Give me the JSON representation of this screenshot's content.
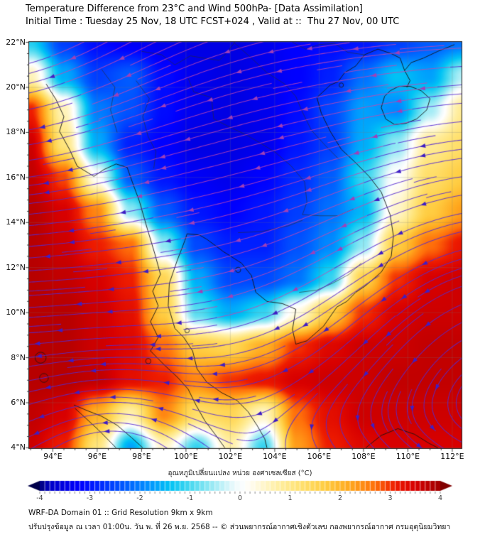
{
  "header": {
    "title": "Temperature Difference from 23°C and Wind 500hPa- [Data Assimilation]",
    "subtitle": "Initial Time : Tuesday 25 Nov, 18 UTC FCST+024 , Valid at ::  Thu 27 Nov, 00 UTC"
  },
  "axes": {
    "lat_ticks": [
      {
        "deg": 22,
        "label": "22°N"
      },
      {
        "deg": 20,
        "label": "20°N"
      },
      {
        "deg": 18,
        "label": "18°N"
      },
      {
        "deg": 16,
        "label": "16°N"
      },
      {
        "deg": 14,
        "label": "14°N"
      },
      {
        "deg": 12,
        "label": "12°N"
      },
      {
        "deg": 10,
        "label": "10°N"
      },
      {
        "deg": 8,
        "label": "8°N"
      },
      {
        "deg": 6,
        "label": "6°N"
      },
      {
        "deg": 4,
        "label": "4°N"
      }
    ],
    "lon_ticks": [
      {
        "deg": 94,
        "label": "94°E"
      },
      {
        "deg": 96,
        "label": "96°E"
      },
      {
        "deg": 98,
        "label": "98°E"
      },
      {
        "deg": 100,
        "label": "100°E"
      },
      {
        "deg": 102,
        "label": "102°E"
      },
      {
        "deg": 104,
        "label": "104°E"
      },
      {
        "deg": 106,
        "label": "106°E"
      },
      {
        "deg": 108,
        "label": "108°E"
      },
      {
        "deg": 110,
        "label": "110°E"
      },
      {
        "deg": 112,
        "label": "112°E"
      }
    ],
    "lon_min": 92.9,
    "lon_max": 112.45,
    "lat_min": 3.95,
    "lat_max": 22.05
  },
  "chart_data": {
    "type": "heatmap",
    "title": "Temperature difference (°C) from 23°C at 500hPa with streamlines",
    "x": [
      93,
      94.5,
      96,
      97.5,
      99,
      100.5,
      102,
      103.5,
      105,
      106.5,
      108,
      109.5,
      111,
      112.5
    ],
    "y": [
      22,
      20.5,
      19,
      17.5,
      16,
      14.5,
      13,
      11.5,
      10,
      8.5,
      7,
      5.5,
      4
    ],
    "values": [
      [
        -1.2,
        -2.6,
        -3.1,
        -3.3,
        -3.4,
        -3.5,
        -3.5,
        -3.4,
        -3.2,
        -3.1,
        -3.0,
        -2.6,
        -2.3,
        -2.1
      ],
      [
        0.6,
        -1.6,
        -2.6,
        -2.3,
        -3.1,
        -3.4,
        -3.5,
        -3.4,
        -3.2,
        -2.9,
        -2.1,
        -1.4,
        -1.7,
        -0.4
      ],
      [
        3.1,
        0.6,
        -2.0,
        -2.4,
        -3.1,
        -3.4,
        -3.5,
        -3.4,
        -3.1,
        -2.5,
        -1.7,
        -1.9,
        -0.5,
        0.9
      ],
      [
        3.6,
        1.1,
        -1.6,
        -2.9,
        -3.2,
        -3.5,
        -3.5,
        -3.4,
        -3.0,
        -2.6,
        -1.6,
        -0.6,
        0.9,
        1.3
      ],
      [
        3.7,
        2.9,
        0.1,
        -2.3,
        -3.0,
        -3.3,
        -3.4,
        -3.2,
        -2.8,
        -2.3,
        -1.1,
        0.1,
        1.3,
        1.7
      ],
      [
        3.8,
        3.5,
        2.5,
        -0.6,
        -2.3,
        -3.0,
        -3.2,
        -3.0,
        -2.6,
        -2.1,
        -1.5,
        0.5,
        1.7,
        2.3
      ],
      [
        3.8,
        3.6,
        3.1,
        2.7,
        -0.6,
        -2.5,
        -2.9,
        -2.9,
        -2.4,
        -1.9,
        -0.6,
        1.7,
        2.7,
        3.2
      ],
      [
        3.8,
        3.7,
        3.5,
        3.1,
        1.5,
        -1.6,
        -2.5,
        -2.5,
        -2.1,
        -1.1,
        1.6,
        3.0,
        3.5,
        3.6
      ],
      [
        3.8,
        3.8,
        3.6,
        3.3,
        1.7,
        -0.9,
        -1.6,
        -1.1,
        0.3,
        1.7,
        3.0,
        3.5,
        3.6,
        3.6
      ],
      [
        3.8,
        3.8,
        3.6,
        3.4,
        2.7,
        1.7,
        1.5,
        2.1,
        3.0,
        3.4,
        3.6,
        3.6,
        3.7,
        3.7
      ],
      [
        3.8,
        3.8,
        3.7,
        3.3,
        3.1,
        2.5,
        3.0,
        3.2,
        3.5,
        3.6,
        3.6,
        3.7,
        3.7,
        3.7
      ],
      [
        3.7,
        3.5,
        2.1,
        0.7,
        2.5,
        1.3,
        1.5,
        0.5,
        2.7,
        3.3,
        3.6,
        3.6,
        3.6,
        3.6
      ],
      [
        3.6,
        3.1,
        1.1,
        -1.7,
        0.5,
        -1.1,
        0.7,
        -1.1,
        2.3,
        3.1,
        3.4,
        3.5,
        3.5,
        3.5
      ]
    ],
    "colormap": [
      [
        -4.3,
        "#000041"
      ],
      [
        -4.0,
        "#000078"
      ],
      [
        -3.8,
        "#0000c8"
      ],
      [
        -3.2,
        "#0000ff"
      ],
      [
        -2.7,
        "#0033ff"
      ],
      [
        -2.2,
        "#0066ff"
      ],
      [
        -1.8,
        "#0096ff"
      ],
      [
        -1.4,
        "#00c3f5"
      ],
      [
        -1.0,
        "#46d8f0"
      ],
      [
        -0.6,
        "#90e8f4"
      ],
      [
        -0.3,
        "#c8f3f9"
      ],
      [
        -0.1,
        "#eefafc"
      ],
      [
        0.1,
        "#ffffff"
      ],
      [
        0.35,
        "#fff9dc"
      ],
      [
        0.75,
        "#ffefa4"
      ],
      [
        1.2,
        "#ffe272"
      ],
      [
        1.7,
        "#ffcd42"
      ],
      [
        2.2,
        "#ffa81e"
      ],
      [
        2.7,
        "#ff700a"
      ],
      [
        3.1,
        "#ee1c00"
      ],
      [
        3.5,
        "#d80000"
      ],
      [
        3.9,
        "#ac0000"
      ],
      [
        4.3,
        "#7c0000"
      ]
    ],
    "range": [
      -4,
      4
    ]
  },
  "map_layers": {
    "wind": {
      "background": {
        "u": -9,
        "v": 0
      },
      "features": [
        {
          "kind": "anticyclone",
          "lon": 90.0,
          "lat": 24.0,
          "strength": 1.5,
          "radius": 9
        },
        {
          "kind": "cyclone",
          "lon": 96.6,
          "lat": 3.1,
          "strength": 3.4,
          "radius": 4
        },
        {
          "kind": "cyclone",
          "lon": 114.5,
          "lat": 10.0,
          "strength": 2.1,
          "radius": 8
        },
        {
          "kind": "westerly_strip",
          "lon": 108.0,
          "lat": 3.8,
          "strength": 9,
          "radius_lon": 9,
          "radius_lat": 2.3
        }
      ]
    },
    "coastlines": [
      [
        [
          93.7,
          20.15
        ],
        [
          94.15,
          19.45
        ],
        [
          94.5,
          18.7
        ],
        [
          94.3,
          18.05
        ],
        [
          94.75,
          17.25
        ],
        [
          95.1,
          16.5
        ],
        [
          95.85,
          16.05
        ],
        [
          96.3,
          16.35
        ],
        [
          96.85,
          16.6
        ],
        [
          97.35,
          16.45
        ],
        [
          97.6,
          15.75
        ],
        [
          97.9,
          14.95
        ],
        [
          98.25,
          13.75
        ],
        [
          98.6,
          12.6
        ],
        [
          98.85,
          11.7
        ],
        [
          98.5,
          10.95
        ],
        [
          98.75,
          10.3
        ],
        [
          98.4,
          9.6
        ],
        [
          98.75,
          8.9
        ],
        [
          98.4,
          8.3
        ],
        [
          99.0,
          7.7
        ],
        [
          99.65,
          7.1
        ],
        [
          100.1,
          6.6
        ],
        [
          100.45,
          5.9
        ],
        [
          100.85,
          5.2
        ],
        [
          101.35,
          4.55
        ],
        [
          101.75,
          4.0
        ]
      ],
      [
        [
          99.95,
          13.2
        ],
        [
          100.05,
          13.5
        ],
        [
          100.6,
          13.45
        ],
        [
          100.95,
          13.25
        ],
        [
          101.7,
          12.7
        ],
        [
          102.5,
          12.2
        ],
        [
          102.95,
          11.65
        ],
        [
          103.15,
          10.9
        ],
        [
          103.65,
          10.5
        ],
        [
          104.35,
          10.4
        ],
        [
          104.95,
          10.15
        ],
        [
          104.8,
          9.25
        ],
        [
          104.95,
          8.6
        ],
        [
          105.45,
          8.75
        ],
        [
          106.2,
          9.4
        ],
        [
          106.8,
          10.25
        ],
        [
          107.25,
          10.5
        ],
        [
          107.65,
          10.9
        ],
        [
          108.1,
          11.2
        ],
        [
          108.8,
          11.8
        ],
        [
          109.25,
          12.5
        ],
        [
          109.35,
          13.4
        ],
        [
          109.2,
          14.35
        ],
        [
          108.8,
          15.35
        ],
        [
          108.25,
          16.05
        ],
        [
          107.6,
          16.7
        ],
        [
          107.0,
          17.25
        ],
        [
          106.5,
          18.05
        ],
        [
          106.1,
          18.85
        ],
        [
          105.9,
          19.55
        ],
        [
          106.5,
          20.1
        ],
        [
          106.85,
          20.25
        ],
        [
          107.15,
          20.65
        ],
        [
          107.65,
          20.95
        ],
        [
          108.05,
          21.45
        ],
        [
          108.65,
          21.7
        ],
        [
          109.25,
          21.5
        ],
        [
          109.65,
          21.3
        ],
        [
          109.85,
          20.75
        ],
        [
          110.15,
          21.1
        ],
        [
          110.7,
          21.3
        ],
        [
          111.35,
          21.6
        ],
        [
          112.1,
          21.9
        ]
      ],
      [
        [
          109.85,
          20.75
        ],
        [
          110.1,
          20.3
        ],
        [
          109.95,
          20.0
        ]
      ],
      [
        [
          109.2,
          19.85
        ],
        [
          109.6,
          20.05
        ],
        [
          110.1,
          20.05
        ],
        [
          110.6,
          19.85
        ],
        [
          111.0,
          19.5
        ],
        [
          110.85,
          19.0
        ],
        [
          110.4,
          18.6
        ],
        [
          109.9,
          18.4
        ],
        [
          109.4,
          18.35
        ],
        [
          109.0,
          18.6
        ],
        [
          108.8,
          19.1
        ],
        [
          108.95,
          19.6
        ],
        [
          109.2,
          19.85
        ]
      ],
      [
        [
          99.95,
          13.2
        ],
        [
          99.6,
          12.3
        ],
        [
          99.25,
          11.3
        ],
        [
          99.2,
          10.3
        ],
        [
          99.5,
          9.3
        ],
        [
          99.9,
          8.9
        ],
        [
          100.3,
          8.3
        ],
        [
          100.5,
          7.5
        ],
        [
          100.95,
          6.9
        ],
        [
          101.6,
          6.45
        ],
        [
          102.3,
          6.1
        ],
        [
          102.8,
          5.6
        ],
        [
          103.2,
          5.0
        ],
        [
          103.55,
          4.4
        ],
        [
          103.65,
          4.0
        ]
      ],
      [
        [
          94.95,
          5.9
        ],
        [
          95.55,
          5.65
        ],
        [
          96.2,
          5.4
        ],
        [
          96.9,
          5.0
        ],
        [
          97.55,
          4.45
        ],
        [
          98.05,
          4.0
        ]
      ],
      [
        [
          95.0,
          5.75
        ],
        [
          95.5,
          5.3
        ],
        [
          96.05,
          4.8
        ],
        [
          96.55,
          4.3
        ],
        [
          96.85,
          4.0
        ]
      ],
      [
        [
          108.1,
          4.0
        ],
        [
          108.8,
          4.55
        ],
        [
          109.55,
          4.85
        ],
        [
          110.3,
          4.6
        ],
        [
          110.95,
          4.2
        ],
        [
          111.35,
          4.0
        ]
      ]
    ],
    "borders": [
      [
        [
          97.75,
          20.3
        ],
        [
          98.35,
          19.5
        ],
        [
          98.05,
          18.7
        ],
        [
          98.3,
          17.8
        ],
        [
          98.65,
          17.15
        ],
        [
          98.55,
          16.4
        ]
      ],
      [
        [
          100.1,
          20.4
        ],
        [
          100.35,
          19.8
        ],
        [
          101.15,
          19.55
        ],
        [
          101.25,
          18.6
        ],
        [
          102.05,
          18.2
        ],
        [
          102.7,
          17.9
        ],
        [
          103.4,
          17.5
        ],
        [
          104.05,
          17.1
        ],
        [
          104.75,
          16.5
        ],
        [
          105.35,
          15.8
        ],
        [
          105.45,
          14.9
        ],
        [
          105.25,
          14.35
        ],
        [
          106.05,
          14.3
        ],
        [
          106.85,
          14.3
        ],
        [
          107.55,
          14.6
        ]
      ],
      [
        [
          102.35,
          13.55
        ],
        [
          103.4,
          13.6
        ],
        [
          104.6,
          13.85
        ],
        [
          105.25,
          14.1
        ]
      ],
      [
        [
          102.15,
          22.0
        ],
        [
          102.95,
          21.3
        ],
        [
          103.65,
          20.65
        ],
        [
          104.45,
          20.15
        ],
        [
          104.95,
          19.6
        ],
        [
          105.25,
          18.9
        ],
        [
          105.65,
          18.1
        ],
        [
          106.3,
          17.4
        ],
        [
          106.9,
          16.8
        ]
      ],
      [
        [
          105.1,
          10.9
        ],
        [
          105.9,
          11.0
        ],
        [
          106.6,
          11.3
        ],
        [
          107.35,
          11.7
        ],
        [
          107.9,
          12.2
        ]
      ],
      [
        [
          98.0,
          21.6
        ],
        [
          98.9,
          21.45
        ],
        [
          99.5,
          21.0
        ],
        [
          100.2,
          21.4
        ],
        [
          100.8,
          21.3
        ],
        [
          101.5,
          21.2
        ],
        [
          101.8,
          21.5
        ],
        [
          102.2,
          22.0
        ]
      ],
      [
        [
          96.2,
          20.8
        ],
        [
          96.8,
          20.0
        ],
        [
          96.6,
          19.0
        ],
        [
          96.9,
          18.0
        ]
      ],
      [
        [
          104.8,
          22.0
        ],
        [
          105.4,
          21.7
        ],
        [
          106.0,
          21.9
        ],
        [
          106.7,
          21.95
        ],
        [
          107.3,
          21.55
        ],
        [
          108.05,
          21.45
        ]
      ]
    ],
    "islands": [
      [
        93.45,
        8.0,
        0.25
      ],
      [
        93.6,
        7.1,
        0.2
      ],
      [
        98.3,
        7.85,
        0.12
      ],
      [
        100.05,
        9.2,
        0.1
      ],
      [
        102.35,
        11.9,
        0.12
      ],
      [
        107.0,
        20.1,
        0.1
      ]
    ],
    "style": {
      "stream_color_warm": "rgba(86,42,208,0.85)",
      "stream_color_cold": "rgba(196,72,176,0.8)",
      "arrow_color_warm": "#3f1ec4",
      "arrow_color_cold": "#a040b8",
      "coast_color": "#141414",
      "border_color": "#2a2a2a",
      "grid_color": "rgba(120,120,120,0.35)",
      "frame_color": "#222222"
    }
  },
  "colorbar": {
    "label": "อุณหภูมิเปลี่ยนแปลง หน่วย องศาเซลเซียส (°C)",
    "ticks": [
      {
        "v": -4,
        "label": "-4"
      },
      {
        "v": -3,
        "label": "-3"
      },
      {
        "v": -2,
        "label": "-2"
      },
      {
        "v": -1,
        "label": "-1"
      },
      {
        "v": 0,
        "label": "0"
      },
      {
        "v": 1,
        "label": "1"
      },
      {
        "v": 2,
        "label": "2"
      },
      {
        "v": 3,
        "label": "3"
      },
      {
        "v": 4,
        "label": "4"
      }
    ]
  },
  "footer": {
    "line1": "WRF-DA Domain 01 :: Grid Resolution 9km x 9km",
    "line2": "ปรับปรุงข้อมูล ณ เวลา 01:00น. วัน พ. ที่ 26 พ.ย. 2568 -- © ส่วนพยากรณ์อากาศเชิงตัวเลข กองพยากรณ์อากาศ กรมอุตุนิยมวิทยา"
  }
}
